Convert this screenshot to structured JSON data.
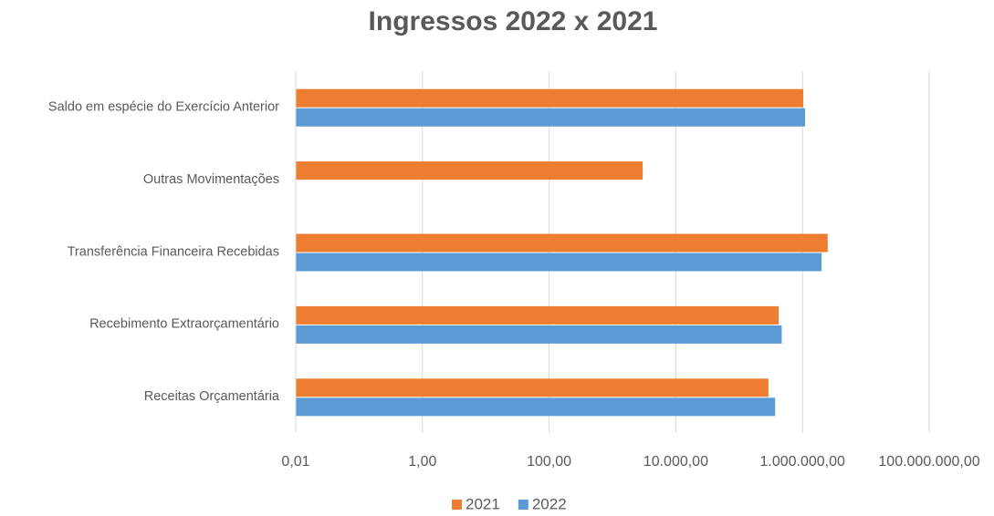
{
  "chart_data": {
    "type": "bar",
    "orientation": "horizontal",
    "title": "Ingressos 2022 x 2021",
    "categories": [
      "Saldo em espécie do Exercício Anterior",
      "Outras Movimentações",
      "Transferência Financeira Recebidas",
      "Recebimento Extraorçamentário",
      "Receitas Orçamentária"
    ],
    "series": [
      {
        "name": "2021",
        "color": "#ed7d31",
        "values": [
          1030000,
          3000,
          2500000,
          420000,
          290000
        ]
      },
      {
        "name": "2022",
        "color": "#5b9bd5",
        "values": [
          1100000,
          null,
          2000000,
          470000,
          370000
        ]
      }
    ],
    "xscale": "log",
    "xlim": [
      0.01,
      100000000
    ],
    "xticks": [
      {
        "value": 0.01,
        "label": "0,01"
      },
      {
        "value": 1,
        "label": "1,00"
      },
      {
        "value": 100,
        "label": "100,00"
      },
      {
        "value": 10000,
        "label": "10.000,00"
      },
      {
        "value": 1000000,
        "label": "1.000.000,00"
      },
      {
        "value": 100000000,
        "label": "100.000.000,00"
      }
    ],
    "grid": true,
    "legend": "bottom"
  }
}
